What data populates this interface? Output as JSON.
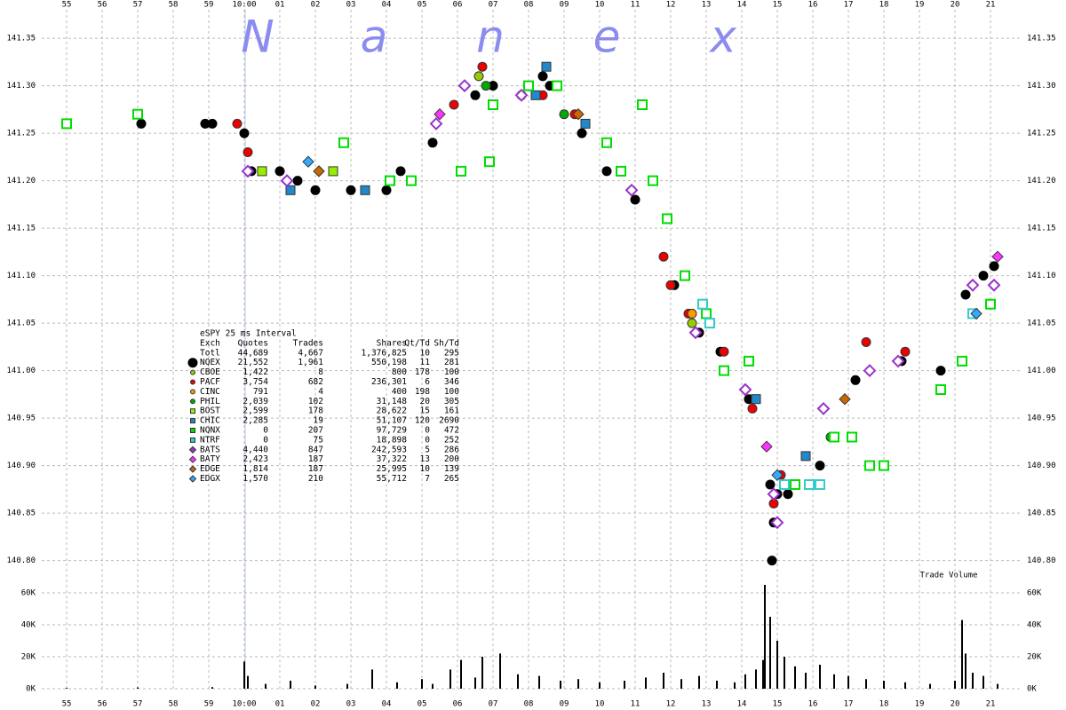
{
  "chart_data": [
    {
      "type": "scatter",
      "watermark": [
        "N",
        "a",
        "n",
        "e",
        "x"
      ],
      "xlim": [
        54.3,
        81.85
      ],
      "xticks": [
        55,
        56,
        57,
        58,
        59,
        {
          "value": 60,
          "label": "10:00"
        },
        {
          "value": 61,
          "label": "01"
        },
        {
          "value": 62,
          "label": "02"
        },
        {
          "value": 63,
          "label": "03"
        },
        {
          "value": 64,
          "label": "04"
        },
        {
          "value": 65,
          "label": "05"
        },
        {
          "value": 66,
          "label": "06"
        },
        {
          "value": 67,
          "label": "07"
        },
        {
          "value": 68,
          "label": "08"
        },
        {
          "value": 69,
          "label": "09"
        },
        {
          "value": 70,
          "label": "10"
        },
        {
          "value": 71,
          "label": "11"
        },
        {
          "value": 72,
          "label": "12"
        },
        {
          "value": 73,
          "label": "13"
        },
        {
          "value": 74,
          "label": "14"
        },
        {
          "value": 75,
          "label": "15"
        },
        {
          "value": 76,
          "label": "16"
        },
        {
          "value": 77,
          "label": "17"
        },
        {
          "value": 78,
          "label": "18"
        },
        {
          "value": 79,
          "label": "19"
        },
        {
          "value": 80,
          "label": "20"
        },
        {
          "value": 81,
          "label": "21"
        }
      ],
      "ylim": [
        140.78,
        141.38
      ],
      "yticks": [
        {
          "value": 140.8,
          "label": "140.80"
        },
        {
          "value": 140.85,
          "label": "140.85"
        },
        {
          "value": 140.9,
          "label": "140.90"
        },
        {
          "value": 140.95,
          "label": "140.95"
        },
        {
          "value": 141.0,
          "label": "141.00"
        },
        {
          "value": 141.05,
          "label": "141.05"
        },
        {
          "value": 141.1,
          "label": "141.10"
        },
        {
          "value": 141.15,
          "label": "141.15"
        },
        {
          "value": 141.2,
          "label": "141.20"
        },
        {
          "value": 141.25,
          "label": "141.25"
        },
        {
          "value": 141.3,
          "label": "141.30"
        },
        {
          "value": 141.35,
          "label": "141.35"
        }
      ],
      "grid": true,
      "legend_title": "eSPY 25 ms Interval",
      "legend_columns": [
        "Exch",
        "Quotes",
        "Trades",
        "Shares",
        "Qt/Td",
        "Sh/Td"
      ],
      "total": {
        "name": "Totl",
        "quotes": "44,689",
        "trades": "4,667",
        "shares": "1,376,825",
        "qt_td": "10",
        "sh_td": "295"
      },
      "series": [
        {
          "name": "NQEX",
          "color": "#000000",
          "marker": "circle",
          "hollow": false,
          "quotes": "21,552",
          "trades": "1,961",
          "shares": "550,198",
          "qt_td": "11",
          "sh_td": "281",
          "x": [
            57.1,
            58.9,
            59.1,
            60.0,
            60.2,
            61.0,
            61.5,
            62.0,
            63.0,
            64.0,
            64.4,
            65.3,
            66.5,
            67.0,
            67.8,
            68.4,
            68.6,
            69.5,
            70.2,
            71.0,
            72.1,
            72.8,
            73.4,
            74.2,
            74.8,
            74.85,
            74.9,
            75.0,
            75.3,
            76.2,
            77.2,
            78.5,
            79.6,
            80.3,
            80.8,
            81.1
          ],
          "values": [
            141.26,
            141.26,
            141.26,
            141.25,
            141.21,
            141.21,
            141.2,
            141.19,
            141.19,
            141.19,
            141.21,
            141.24,
            141.29,
            141.3,
            141.29,
            141.31,
            141.3,
            141.25,
            141.21,
            141.18,
            141.09,
            141.04,
            141.02,
            140.97,
            140.88,
            140.8,
            140.84,
            140.87,
            140.87,
            140.9,
            140.99,
            141.01,
            141.0,
            141.08,
            141.1,
            141.11
          ]
        },
        {
          "name": "CBOE",
          "color": "#99cc00",
          "marker": "circle",
          "hollow": false,
          "quotes": "1,422",
          "trades": "8",
          "shares": "800",
          "qt_td": "178",
          "sh_td": "100",
          "x": [
            66.6,
            72.6
          ],
          "values": [
            141.31,
            141.05
          ]
        },
        {
          "name": "PACF",
          "color": "#ee0000",
          "marker": "circle",
          "hollow": false,
          "quotes": "3,754",
          "trades": "682",
          "shares": "236,301",
          "qt_td": "6",
          "sh_td": "346",
          "x": [
            59.8,
            60.1,
            65.9,
            66.7,
            68.4,
            69.3,
            71.8,
            72.0,
            72.5,
            73.5,
            74.3,
            74.9,
            75.1,
            77.5,
            78.6
          ],
          "values": [
            141.26,
            141.23,
            141.28,
            141.32,
            141.29,
            141.27,
            141.12,
            141.09,
            141.06,
            141.02,
            140.96,
            140.86,
            140.89,
            141.03,
            141.02
          ]
        },
        {
          "name": "CINC",
          "color": "#ff9900",
          "marker": "circle",
          "hollow": false,
          "quotes": "791",
          "trades": "4",
          "shares": "400",
          "qt_td": "198",
          "sh_td": "100",
          "x": [
            72.6
          ],
          "values": [
            141.06
          ]
        },
        {
          "name": "PHIL",
          "color": "#00aa00",
          "marker": "circle",
          "hollow": false,
          "quotes": "2,039",
          "trades": "102",
          "shares": "31,148",
          "qt_td": "20",
          "sh_td": "305",
          "x": [
            66.8,
            69.0,
            76.5
          ],
          "values": [
            141.3,
            141.27,
            140.93
          ]
        },
        {
          "name": "BOST",
          "color": "#99ee00",
          "marker": "square",
          "hollow": false,
          "quotes": "2,599",
          "trades": "178",
          "shares": "28,622",
          "qt_td": "15",
          "sh_td": "161",
          "x": [
            60.5,
            62.5
          ],
          "values": [
            141.21,
            141.21
          ]
        },
        {
          "name": "CHIC",
          "color": "#2288cc",
          "marker": "square",
          "hollow": false,
          "quotes": "2,285",
          "trades": "19",
          "shares": "51,107",
          "qt_td": "120",
          "sh_td": "2690",
          "x": [
            61.3,
            63.4,
            68.2,
            68.5,
            69.6,
            74.4,
            75.8
          ],
          "values": [
            141.19,
            141.19,
            141.29,
            141.32,
            141.26,
            140.97,
            140.91
          ]
        },
        {
          "name": "NQNX",
          "color": "#00dd00",
          "marker": "square",
          "hollow": true,
          "quotes": "0",
          "trades": "207",
          "shares": "97,729",
          "qt_td": "0",
          "sh_td": "472",
          "x": [
            55.0,
            57.0,
            62.8,
            64.1,
            64.7,
            66.1,
            66.9,
            67.0,
            68.0,
            68.8,
            70.2,
            70.6,
            71.2,
            71.5,
            71.9,
            72.4,
            73.0,
            73.5,
            74.2,
            75.5,
            76.6,
            77.1,
            77.6,
            78.0,
            79.6,
            80.2,
            81.0
          ],
          "values": [
            141.26,
            141.27,
            141.24,
            141.2,
            141.2,
            141.21,
            141.22,
            141.28,
            141.3,
            141.3,
            141.24,
            141.21,
            141.28,
            141.2,
            141.16,
            141.1,
            141.06,
            141.0,
            141.01,
            140.88,
            140.93,
            140.93,
            140.9,
            140.9,
            140.98,
            141.01,
            141.07
          ]
        },
        {
          "name": "NTRF",
          "color": "#33cccc",
          "marker": "square",
          "hollow": true,
          "quotes": "0",
          "trades": "75",
          "shares": "18,898",
          "qt_td": "0",
          "sh_td": "252",
          "x": [
            72.9,
            73.1,
            75.2,
            75.9,
            76.2,
            80.5
          ],
          "values": [
            141.07,
            141.05,
            140.88,
            140.88,
            140.88,
            141.06
          ]
        },
        {
          "name": "BATS",
          "color": "#9933cc",
          "marker": "diamond",
          "hollow": true,
          "quotes": "4,440",
          "trades": "847",
          "shares": "242,593",
          "qt_td": "5",
          "sh_td": "286",
          "x": [
            60.1,
            61.2,
            65.4,
            66.2,
            67.8,
            70.9,
            72.7,
            74.1,
            74.9,
            75.0,
            76.3,
            77.6,
            78.4,
            80.5,
            81.1
          ],
          "values": [
            141.21,
            141.2,
            141.26,
            141.3,
            141.29,
            141.19,
            141.04,
            140.98,
            140.87,
            140.84,
            140.96,
            141.0,
            141.01,
            141.09,
            141.09
          ]
        },
        {
          "name": "BATY",
          "color": "#ff33ff",
          "marker": "diamond",
          "hollow": false,
          "quotes": "2,423",
          "trades": "187",
          "shares": "37,322",
          "qt_td": "13",
          "sh_td": "200",
          "x": [
            65.5,
            74.7,
            81.2
          ],
          "values": [
            141.27,
            140.92,
            141.12
          ]
        },
        {
          "name": "EDGE",
          "color": "#cc6600",
          "marker": "diamond",
          "hollow": false,
          "quotes": "1,814",
          "trades": "187",
          "shares": "25,995",
          "qt_td": "10",
          "sh_td": "139",
          "x": [
            62.1,
            69.4,
            76.9
          ],
          "values": [
            141.21,
            141.27,
            140.97
          ]
        },
        {
          "name": "EDGX",
          "color": "#33aaff",
          "marker": "diamond",
          "hollow": false,
          "quotes": "1,570",
          "trades": "210",
          "shares": "55,712",
          "qt_td": "7",
          "sh_td": "265",
          "x": [
            61.8,
            75.0,
            80.6
          ],
          "values": [
            141.22,
            140.89,
            141.06
          ]
        }
      ]
    },
    {
      "type": "bar",
      "title": "Trade Volume",
      "color": "#000000",
      "ylim": [
        0,
        65000
      ],
      "yticks": [
        {
          "value": 0,
          "label": "0K"
        },
        {
          "value": 20000,
          "label": "20K"
        },
        {
          "value": 40000,
          "label": "40K"
        },
        {
          "value": 60000,
          "label": "60K"
        }
      ],
      "x": [
        55.0,
        57.0,
        59.1,
        60.0,
        60.1,
        60.6,
        61.3,
        62.0,
        62.9,
        63.6,
        64.3,
        65.0,
        65.3,
        65.8,
        66.1,
        66.5,
        66.7,
        67.2,
        67.7,
        68.3,
        68.9,
        69.4,
        70.0,
        70.7,
        71.3,
        71.8,
        72.3,
        72.8,
        73.3,
        73.8,
        74.1,
        74.4,
        74.6,
        74.65,
        74.8,
        75.0,
        75.2,
        75.5,
        75.8,
        76.2,
        76.6,
        77.0,
        77.5,
        78.0,
        78.6,
        79.3,
        80.0,
        80.2,
        80.3,
        80.5,
        80.8,
        81.2
      ],
      "values": [
        500,
        800,
        1000,
        17000,
        8000,
        3000,
        5000,
        2000,
        3000,
        12000,
        4000,
        6000,
        3000,
        12000,
        18000,
        7000,
        20000,
        22000,
        9000,
        8000,
        5000,
        6000,
        4000,
        5000,
        7000,
        10000,
        6000,
        8000,
        5000,
        4000,
        9000,
        12000,
        18000,
        65000,
        45000,
        30000,
        20000,
        14000,
        10000,
        15000,
        9000,
        8000,
        6000,
        5000,
        4000,
        3000,
        5000,
        43000,
        22000,
        10000,
        8000,
        3000
      ]
    }
  ]
}
